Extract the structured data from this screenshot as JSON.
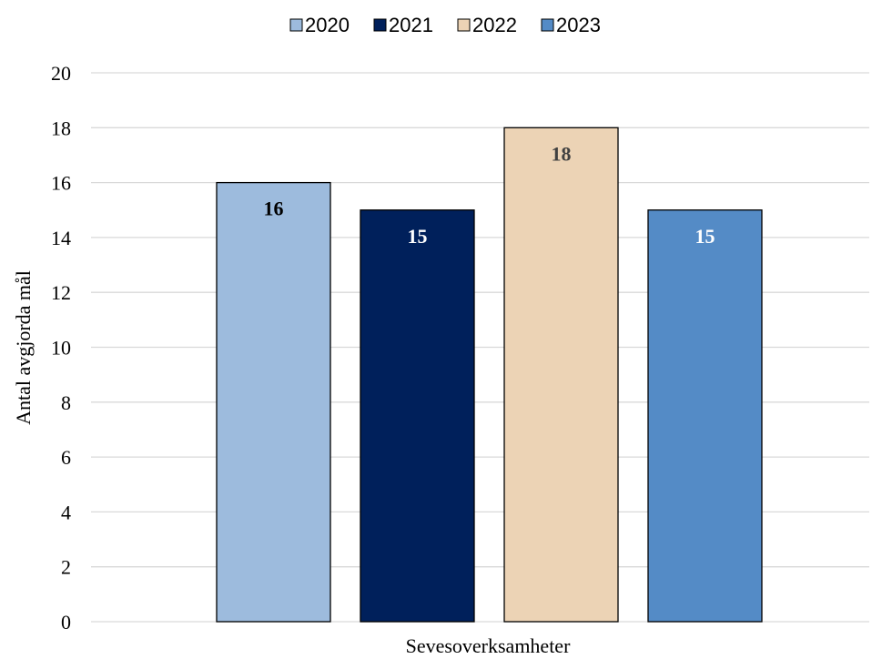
{
  "chart_data": {
    "type": "bar",
    "categories": [
      "Sevesoverksamheter"
    ],
    "series": [
      {
        "name": "2020",
        "values": [
          16
        ],
        "color": "#9dbbdd",
        "label_color": "#000000"
      },
      {
        "name": "2021",
        "values": [
          15
        ],
        "color": "#00205b",
        "label_color": "#ffffff"
      },
      {
        "name": "2022",
        "values": [
          18
        ],
        "color": "#ecd3b5",
        "label_color": "#404040"
      },
      {
        "name": "2023",
        "values": [
          15
        ],
        "color": "#548bc6",
        "label_color": "#ffffff"
      }
    ],
    "title": "",
    "xlabel": "Sevesoverksamheter",
    "ylabel": "Antal avgjorda mål",
    "ylim": [
      0,
      20
    ],
    "yticks": [
      "0",
      "2",
      "4",
      "6",
      "8",
      "10",
      "12",
      "14",
      "16",
      "18",
      "20"
    ],
    "grid": true,
    "legend_position": "top"
  }
}
